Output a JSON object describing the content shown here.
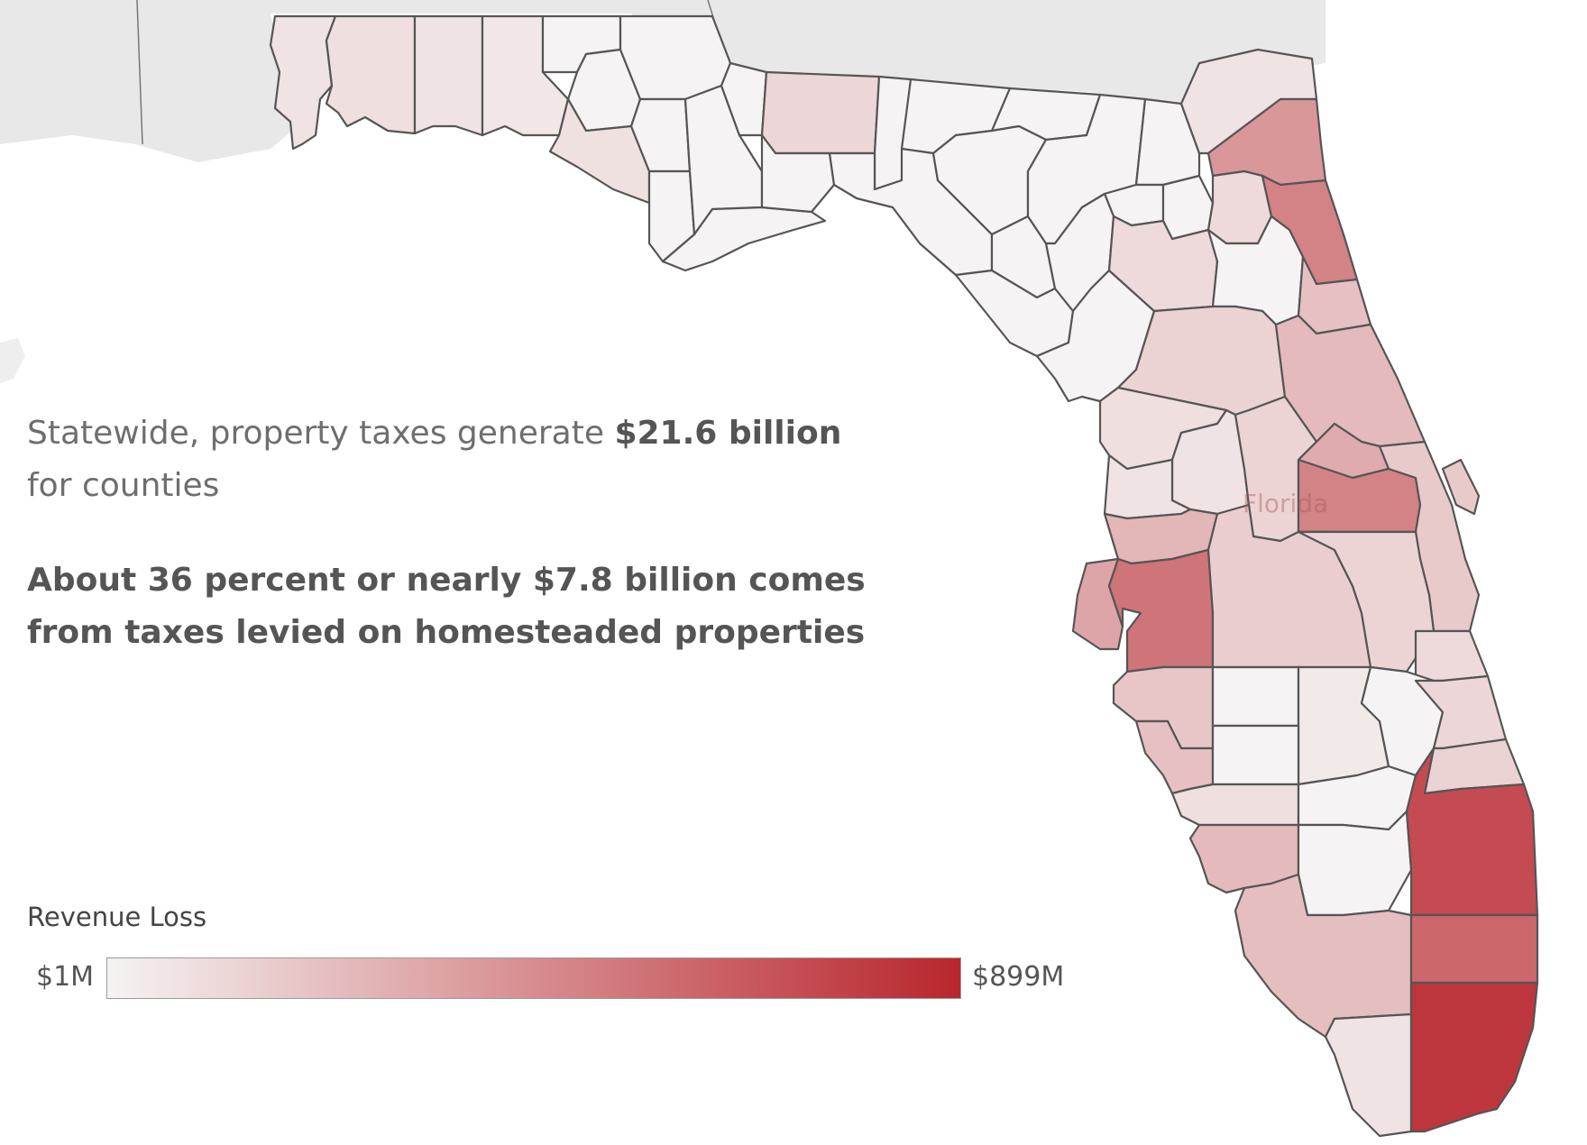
{
  "map": {
    "state_label": "Florida",
    "color_low": "#f5f3f3",
    "color_high": "#b8262d",
    "border_color": "#555555",
    "neighbor_fill": "#e6e6e6"
  },
  "text": {
    "line1_prefix": "Statewide, property taxes generate ",
    "line1_bold": "$21.6 billion",
    "line1_suffix": " for counties",
    "line2": "About 36 percent or nearly $7.8 billion comes from taxes levied on homesteaded properties"
  },
  "legend": {
    "title": "Revenue Loss",
    "min_label": "$1M",
    "max_label": "$899M",
    "min_value": 1,
    "max_value": 899
  },
  "counties": [
    {
      "id": "escambia",
      "level": 0.08
    },
    {
      "id": "santa-rosa",
      "level": 0.1
    },
    {
      "id": "okaloosa",
      "level": 0.08
    },
    {
      "id": "walton",
      "level": 0.06
    },
    {
      "id": "holmes",
      "level": 0.0
    },
    {
      "id": "washington",
      "level": 0.0
    },
    {
      "id": "bay",
      "level": 0.09
    },
    {
      "id": "jackson",
      "level": 0.0
    },
    {
      "id": "calhoun",
      "level": 0.0
    },
    {
      "id": "gulf",
      "level": 0.0
    },
    {
      "id": "liberty",
      "level": 0.0
    },
    {
      "id": "gadsden",
      "level": 0.0
    },
    {
      "id": "franklin",
      "level": 0.0
    },
    {
      "id": "leon",
      "level": 0.14
    },
    {
      "id": "wakulla",
      "level": 0.0
    },
    {
      "id": "jefferson",
      "level": 0.0
    },
    {
      "id": "madison",
      "level": 0.0
    },
    {
      "id": "taylor",
      "level": 0.0
    },
    {
      "id": "hamilton",
      "level": 0.0
    },
    {
      "id": "suwannee",
      "level": 0.0
    },
    {
      "id": "lafayette",
      "level": 0.0
    },
    {
      "id": "dixie",
      "level": 0.0
    },
    {
      "id": "columbia",
      "level": 0.0
    },
    {
      "id": "baker",
      "level": 0.0
    },
    {
      "id": "union",
      "level": 0.0
    },
    {
      "id": "bradford",
      "level": 0.0
    },
    {
      "id": "gilchrist",
      "level": 0.0
    },
    {
      "id": "levy",
      "level": 0.0
    },
    {
      "id": "alachua",
      "level": 0.12
    },
    {
      "id": "nassau",
      "level": 0.08
    },
    {
      "id": "duval",
      "level": 0.45
    },
    {
      "id": "st-johns",
      "level": 0.55
    },
    {
      "id": "clay",
      "level": 0.12
    },
    {
      "id": "putnam",
      "level": 0.0
    },
    {
      "id": "flagler",
      "level": 0.25
    },
    {
      "id": "marion",
      "level": 0.16
    },
    {
      "id": "volusia",
      "level": 0.28
    },
    {
      "id": "citrus",
      "level": 0.1
    },
    {
      "id": "sumter",
      "level": 0.08
    },
    {
      "id": "lake",
      "level": 0.15
    },
    {
      "id": "seminole",
      "level": 0.35
    },
    {
      "id": "orange",
      "level": 0.55
    },
    {
      "id": "brevard",
      "level": 0.2
    },
    {
      "id": "hernando",
      "level": 0.08
    },
    {
      "id": "pasco",
      "level": 0.3
    },
    {
      "id": "pinellas",
      "level": 0.38
    },
    {
      "id": "hillsborough",
      "level": 0.62
    },
    {
      "id": "polk",
      "level": 0.18
    },
    {
      "id": "osceola",
      "level": 0.15
    },
    {
      "id": "indian-river",
      "level": 0.12
    },
    {
      "id": "manatee",
      "level": 0.22
    },
    {
      "id": "hardee",
      "level": 0.0
    },
    {
      "id": "highlands",
      "level": 0.05
    },
    {
      "id": "okeechobee",
      "level": 0.0
    },
    {
      "id": "st-lucie",
      "level": 0.14
    },
    {
      "id": "martin",
      "level": 0.16
    },
    {
      "id": "sarasota",
      "level": 0.25
    },
    {
      "id": "desoto",
      "level": 0.0
    },
    {
      "id": "charlotte",
      "level": 0.1
    },
    {
      "id": "glades",
      "level": 0.0
    },
    {
      "id": "lee",
      "level": 0.28
    },
    {
      "id": "hendry",
      "level": 0.0
    },
    {
      "id": "palm-beach",
      "level": 0.82
    },
    {
      "id": "collier",
      "level": 0.26
    },
    {
      "id": "broward",
      "level": 0.68
    },
    {
      "id": "monroe",
      "level": 0.08
    },
    {
      "id": "miami-dade",
      "level": 0.92
    }
  ]
}
